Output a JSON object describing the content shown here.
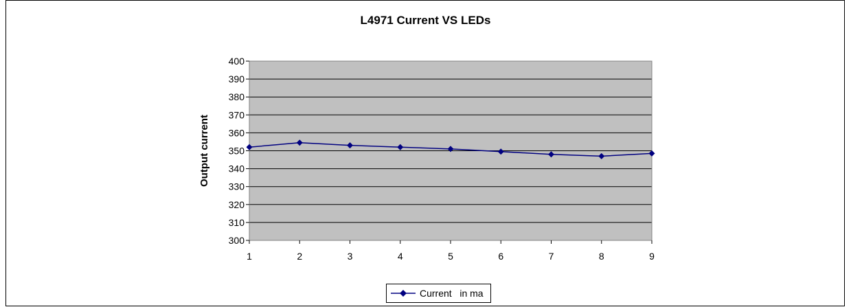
{
  "chart_data": {
    "type": "line",
    "title": "L4971 Current VS LEDs",
    "xlabel": "",
    "ylabel": "Output current",
    "categories": [
      "1",
      "2",
      "3",
      "4",
      "5",
      "6",
      "7",
      "8",
      "9"
    ],
    "y_ticks": [
      "300",
      "310",
      "320",
      "330",
      "340",
      "350",
      "360",
      "370",
      "380",
      "390",
      "400"
    ],
    "ylim": [
      300,
      400
    ],
    "grid": true,
    "legend_position": "bottom",
    "plot_background": "#c0c0c0",
    "series": [
      {
        "name": "Current   in ma",
        "color": "#000080",
        "values": [
          352,
          354.5,
          353,
          352,
          351,
          349.5,
          348,
          347,
          348.5
        ]
      }
    ]
  }
}
